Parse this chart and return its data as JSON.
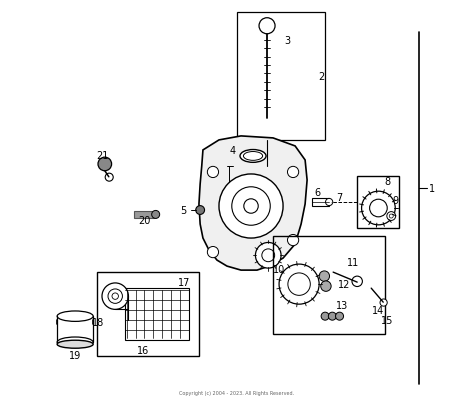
{
  "background_color": "#ffffff",
  "line_color": "#000000",
  "figsize": [
    4.74,
    4.02
  ],
  "dpi": 100,
  "copyright_text": "Copyright (c) 2004 - 2023. All Rights Reserved."
}
